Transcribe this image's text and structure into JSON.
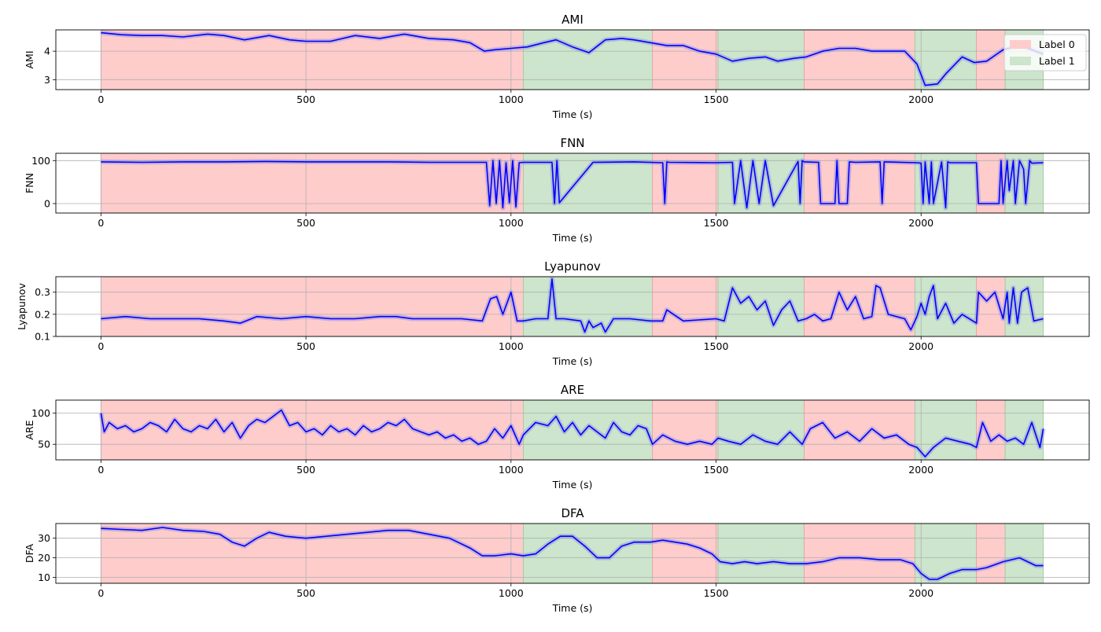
{
  "chart_data": {
    "type": "line",
    "x_axis_label": "Time (s)",
    "x_range": [
      -110,
      2410
    ],
    "x_ticks": [
      0,
      500,
      1000,
      1500,
      2000
    ],
    "legend": {
      "placement": "top-right",
      "entries": [
        {
          "name": "Label 0",
          "color": "#ffcccc"
        },
        {
          "name": "Label 1",
          "color": "#cce5cc"
        }
      ]
    },
    "segments": [
      {
        "start": 0,
        "end": 1030,
        "label": 0
      },
      {
        "start": 1030,
        "end": 1345,
        "label": 1
      },
      {
        "start": 1345,
        "end": 1505,
        "label": 0
      },
      {
        "start": 1505,
        "end": 1715,
        "label": 1
      },
      {
        "start": 1715,
        "end": 1985,
        "label": 0
      },
      {
        "start": 1985,
        "end": 2135,
        "label": 1
      },
      {
        "start": 2135,
        "end": 2205,
        "label": 0
      },
      {
        "start": 2205,
        "end": 2298,
        "label": 1
      }
    ],
    "line_color": "#0000ff",
    "grid": true,
    "panels": [
      {
        "title": "AMI",
        "ylabel": "AMI",
        "ylim": [
          2.65,
          4.75
        ],
        "yticks": [
          3,
          4
        ],
        "series": {
          "x": [
            0,
            50,
            100,
            150,
            200,
            260,
            300,
            350,
            410,
            460,
            500,
            560,
            620,
            680,
            740,
            800,
            860,
            900,
            935,
            960,
            1000,
            1040,
            1080,
            1110,
            1150,
            1190,
            1230,
            1270,
            1300,
            1340,
            1380,
            1420,
            1460,
            1500,
            1540,
            1580,
            1620,
            1650,
            1690,
            1720,
            1760,
            1800,
            1840,
            1880,
            1920,
            1960,
            1990,
            2010,
            2040,
            2060,
            2100,
            2130,
            2160,
            2200,
            2240,
            2270,
            2298
          ],
          "y": [
            4.65,
            4.58,
            4.55,
            4.55,
            4.5,
            4.6,
            4.55,
            4.4,
            4.55,
            4.4,
            4.35,
            4.35,
            4.55,
            4.45,
            4.6,
            4.45,
            4.4,
            4.3,
            4.0,
            4.05,
            4.1,
            4.15,
            4.3,
            4.4,
            4.15,
            3.95,
            4.4,
            4.45,
            4.4,
            4.3,
            4.2,
            4.2,
            4.0,
            3.9,
            3.65,
            3.75,
            3.8,
            3.65,
            3.75,
            3.8,
            4.0,
            4.1,
            4.1,
            4.0,
            4.0,
            4.0,
            3.55,
            2.8,
            2.85,
            3.2,
            3.8,
            3.6,
            3.65,
            4.05,
            4.2,
            4.05,
            3.9
          ]
        }
      },
      {
        "title": "FNN",
        "ylabel": "FNN",
        "ylim": [
          -22,
          117
        ],
        "yticks": [
          0,
          100
        ],
        "series": {
          "x": [
            0,
            100,
            200,
            300,
            400,
            500,
            600,
            700,
            800,
            900,
            940,
            948,
            956,
            964,
            972,
            980,
            988,
            996,
            1004,
            1012,
            1020,
            1030,
            1100,
            1106,
            1112,
            1118,
            1200,
            1300,
            1370,
            1375,
            1380,
            1385,
            1500,
            1540,
            1545,
            1560,
            1575,
            1590,
            1605,
            1620,
            1640,
            1700,
            1705,
            1710,
            1715,
            1750,
            1755,
            1760,
            1790,
            1795,
            1800,
            1820,
            1825,
            1840,
            1900,
            1905,
            1910,
            1990,
            2000,
            2005,
            2010,
            2020,
            2025,
            2030,
            2050,
            2060,
            2065,
            2070,
            2135,
            2140,
            2190,
            2195,
            2200,
            2210,
            2215,
            2225,
            2230,
            2240,
            2250,
            2255,
            2265,
            2270,
            2298
          ],
          "y": [
            97,
            96,
            97,
            97,
            98,
            97,
            97,
            97,
            96,
            96,
            96,
            -5,
            100,
            0,
            100,
            -10,
            95,
            2,
            100,
            -8,
            95,
            96,
            96,
            0,
            100,
            2,
            96,
            97,
            95,
            0,
            97,
            96,
            95,
            96,
            0,
            100,
            -10,
            100,
            0,
            100,
            -5,
            98,
            0,
            100,
            97,
            96,
            0,
            0,
            0,
            100,
            0,
            0,
            97,
            96,
            97,
            0,
            97,
            95,
            94,
            0,
            97,
            0,
            97,
            0,
            97,
            -10,
            97,
            95,
            95,
            0,
            0,
            100,
            0,
            100,
            30,
            100,
            0,
            100,
            80,
            0,
            100,
            94,
            95
          ]
        }
      },
      {
        "title": "Lyapunov",
        "ylabel": "Lyapunov",
        "ylim": [
          0.1,
          0.37
        ],
        "yticks": [
          0.1,
          0.2,
          0.3
        ],
        "series": {
          "x": [
            0,
            60,
            120,
            180,
            240,
            300,
            340,
            380,
            440,
            500,
            560,
            620,
            680,
            720,
            760,
            820,
            880,
            930,
            950,
            965,
            980,
            1000,
            1015,
            1030,
            1060,
            1090,
            1100,
            1110,
            1130,
            1170,
            1180,
            1190,
            1200,
            1220,
            1230,
            1250,
            1290,
            1340,
            1370,
            1380,
            1420,
            1500,
            1520,
            1540,
            1560,
            1580,
            1600,
            1620,
            1640,
            1660,
            1680,
            1700,
            1720,
            1740,
            1760,
            1780,
            1800,
            1820,
            1840,
            1860,
            1880,
            1890,
            1900,
            1920,
            1960,
            1975,
            1990,
            2000,
            2010,
            2020,
            2030,
            2040,
            2060,
            2080,
            2100,
            2135,
            2140,
            2160,
            2180,
            2200,
            2210,
            2215,
            2225,
            2235,
            2245,
            2260,
            2275,
            2298
          ],
          "y": [
            0.18,
            0.19,
            0.18,
            0.18,
            0.18,
            0.17,
            0.16,
            0.19,
            0.18,
            0.19,
            0.18,
            0.18,
            0.19,
            0.19,
            0.18,
            0.18,
            0.18,
            0.17,
            0.27,
            0.28,
            0.2,
            0.3,
            0.17,
            0.17,
            0.18,
            0.18,
            0.36,
            0.18,
            0.18,
            0.17,
            0.12,
            0.17,
            0.14,
            0.16,
            0.12,
            0.18,
            0.18,
            0.17,
            0.17,
            0.22,
            0.17,
            0.18,
            0.17,
            0.32,
            0.25,
            0.28,
            0.22,
            0.26,
            0.15,
            0.22,
            0.26,
            0.17,
            0.18,
            0.2,
            0.17,
            0.18,
            0.3,
            0.22,
            0.28,
            0.18,
            0.19,
            0.33,
            0.32,
            0.2,
            0.18,
            0.13,
            0.19,
            0.25,
            0.2,
            0.28,
            0.33,
            0.18,
            0.25,
            0.16,
            0.2,
            0.16,
            0.3,
            0.26,
            0.3,
            0.18,
            0.3,
            0.16,
            0.32,
            0.16,
            0.3,
            0.32,
            0.17,
            0.18
          ]
        }
      },
      {
        "title": "ARE",
        "ylabel": "ARE",
        "ylim": [
          25,
          121
        ],
        "yticks": [
          50,
          100
        ],
        "series": {
          "x": [
            0,
            8,
            20,
            40,
            60,
            80,
            100,
            120,
            140,
            160,
            180,
            200,
            220,
            240,
            260,
            280,
            300,
            320,
            340,
            360,
            380,
            400,
            420,
            440,
            460,
            480,
            500,
            520,
            540,
            560,
            580,
            600,
            620,
            640,
            660,
            680,
            700,
            720,
            740,
            760,
            780,
            800,
            820,
            840,
            860,
            880,
            900,
            920,
            940,
            960,
            980,
            1000,
            1020,
            1030,
            1060,
            1090,
            1110,
            1130,
            1150,
            1170,
            1190,
            1210,
            1230,
            1250,
            1270,
            1290,
            1310,
            1330,
            1345,
            1370,
            1400,
            1430,
            1460,
            1490,
            1505,
            1530,
            1560,
            1590,
            1620,
            1650,
            1680,
            1710,
            1730,
            1760,
            1790,
            1820,
            1850,
            1880,
            1910,
            1940,
            1970,
            1990,
            2010,
            2030,
            2060,
            2090,
            2120,
            2135,
            2150,
            2170,
            2190,
            2210,
            2230,
            2250,
            2270,
            2290,
            2298
          ],
          "y": [
            100,
            70,
            85,
            75,
            80,
            70,
            75,
            85,
            80,
            70,
            90,
            75,
            70,
            80,
            75,
            90,
            70,
            85,
            60,
            80,
            90,
            85,
            95,
            105,
            80,
            85,
            70,
            75,
            65,
            80,
            70,
            75,
            65,
            80,
            70,
            75,
            85,
            80,
            90,
            75,
            70,
            65,
            70,
            60,
            65,
            55,
            60,
            50,
            55,
            75,
            60,
            80,
            50,
            65,
            85,
            80,
            95,
            70,
            85,
            65,
            80,
            70,
            60,
            85,
            70,
            65,
            80,
            75,
            50,
            65,
            55,
            50,
            55,
            50,
            60,
            55,
            50,
            65,
            55,
            50,
            70,
            50,
            75,
            85,
            60,
            70,
            55,
            75,
            60,
            65,
            50,
            45,
            30,
            45,
            60,
            55,
            50,
            45,
            85,
            55,
            65,
            55,
            60,
            50,
            85,
            45,
            75
          ]
        }
      },
      {
        "title": "DFA",
        "ylabel": "DFA",
        "ylim": [
          7,
          37.5
        ],
        "yticks": [
          10,
          20,
          30
        ],
        "series": {
          "x": [
            0,
            50,
            100,
            150,
            200,
            250,
            290,
            320,
            350,
            380,
            410,
            450,
            500,
            550,
            600,
            650,
            700,
            750,
            800,
            850,
            900,
            930,
            960,
            1000,
            1030,
            1060,
            1090,
            1120,
            1150,
            1180,
            1210,
            1240,
            1270,
            1300,
            1340,
            1370,
            1400,
            1430,
            1460,
            1490,
            1510,
            1540,
            1570,
            1600,
            1640,
            1680,
            1720,
            1760,
            1800,
            1850,
            1900,
            1950,
            1980,
            2000,
            2020,
            2040,
            2070,
            2100,
            2135,
            2160,
            2200,
            2240,
            2260,
            2280,
            2298
          ],
          "y": [
            35,
            34.5,
            34,
            35.5,
            34,
            33.5,
            32,
            28,
            26,
            30,
            33,
            31,
            30,
            31,
            32,
            33,
            34,
            34,
            32,
            30,
            25,
            21,
            21,
            22,
            21,
            22,
            27,
            31,
            31,
            26,
            20,
            20,
            26,
            28,
            28,
            29,
            28,
            27,
            25,
            22,
            18,
            17,
            18,
            17,
            18,
            17,
            17,
            18,
            20,
            20,
            19,
            19,
            17,
            12,
            9,
            9,
            12,
            14,
            14,
            15,
            18,
            20,
            18,
            16,
            16
          ]
        }
      }
    ]
  }
}
